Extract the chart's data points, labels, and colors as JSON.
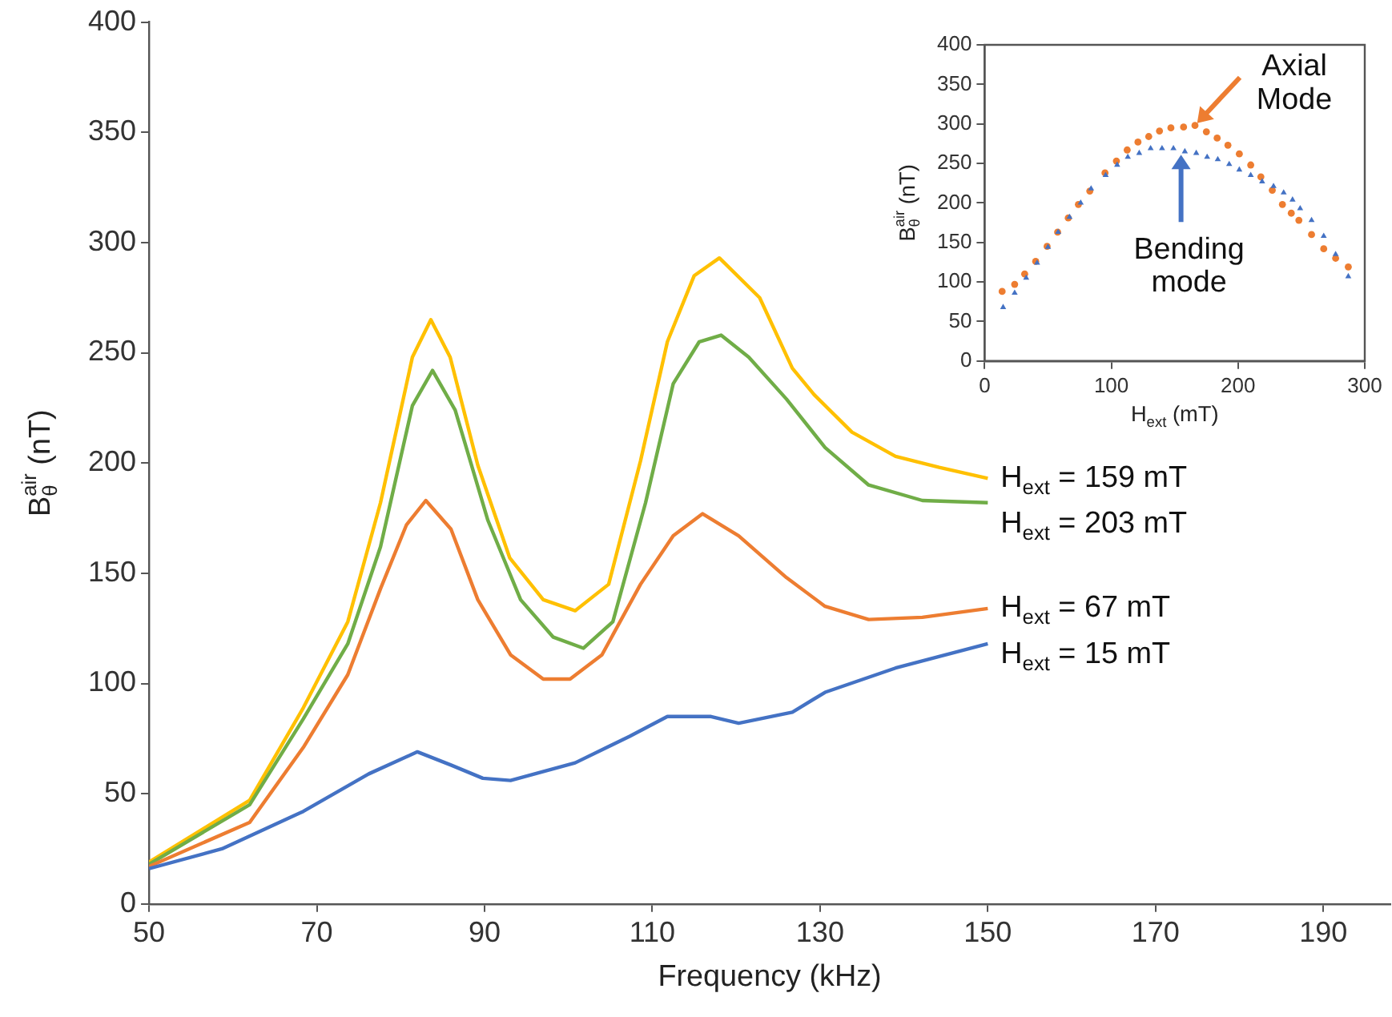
{
  "chart_data": [
    {
      "type": "line",
      "xlabel": "Frequency (kHz)",
      "ylabel": "B$_{θ}$$^{air}$ (nT)",
      "xlim": [
        50,
        198
      ],
      "xticks": [
        50,
        70,
        90,
        110,
        130,
        150,
        170,
        190
      ],
      "ylim": [
        0,
        400
      ],
      "yticks": [
        0,
        50,
        100,
        150,
        200,
        250,
        300,
        350,
        400
      ],
      "series": [
        {
          "name": "H$_{ext}$ = 159 mT",
          "color": "#ffc000",
          "x": [
            50,
            62,
            68.4,
            73.7,
            77.6,
            81.4,
            83.6,
            85.9,
            89.2,
            93,
            97,
            100.8,
            104.8,
            108.6,
            111.8,
            115,
            118,
            122.8,
            126.7,
            129.3,
            133.8,
            139,
            144.2,
            150
          ],
          "values": [
            19,
            47,
            89,
            128,
            182,
            248,
            265,
            248,
            199,
            157,
            138,
            133,
            145,
            201,
            255,
            285,
            293,
            275,
            243,
            231,
            214,
            203,
            198,
            193
          ]
        },
        {
          "name": "H$_{ext}$ = 203 mT",
          "color": "#70ad47",
          "x": [
            50,
            62,
            68.4,
            73.7,
            77.6,
            81.4,
            83.8,
            86.5,
            90.4,
            94.3,
            98.2,
            101.8,
            105.3,
            109.2,
            112.5,
            115.6,
            118.2,
            121.5,
            126,
            130.6,
            135.8,
            142.2,
            150
          ],
          "values": [
            18,
            45,
            84,
            118,
            162,
            226,
            242,
            224,
            174,
            138,
            121,
            116,
            128,
            182,
            236,
            255,
            258,
            248,
            229,
            207,
            190,
            183,
            182
          ]
        },
        {
          "name": "H$_{ext}$ = 67 mT",
          "color": "#ed7d31",
          "x": [
            50,
            62,
            68.4,
            73.7,
            77.6,
            80.7,
            83,
            86,
            89.2,
            93.1,
            97,
            100.2,
            104,
            108.6,
            112.5,
            116,
            120.3,
            126,
            130.6,
            135.8,
            142.2,
            150
          ],
          "values": [
            17,
            37,
            71,
            104,
            143,
            172,
            183,
            170,
            138,
            113,
            102,
            102,
            113,
            145,
            167,
            177,
            167,
            148,
            135,
            129,
            130,
            134
          ]
        },
        {
          "name": "H$_{ext}$ = 15 mT",
          "color": "#4472c4",
          "x": [
            50,
            58.7,
            68.4,
            76.2,
            82,
            86,
            89.8,
            93.1,
            100.8,
            107.3,
            111.8,
            117,
            120.3,
            126.7,
            130.6,
            139,
            150
          ],
          "values": [
            16,
            25,
            42,
            59,
            69,
            63,
            57,
            56,
            64,
            76,
            85,
            85,
            82,
            87,
            96,
            107,
            118
          ]
        }
      ]
    },
    {
      "type": "scatter",
      "xlabel": "H$_{ext}$ (mT)",
      "ylabel": "B$_{θ}$$^{air}$ (nT)",
      "xlim": [
        0,
        300
      ],
      "xticks": [
        0,
        100,
        200,
        300
      ],
      "ylim": [
        0,
        400
      ],
      "yticks": [
        0,
        50,
        100,
        150,
        200,
        250,
        300,
        350,
        400
      ],
      "annotations": [
        {
          "text": "Axial Mode",
          "x": 166,
          "y": 298
        },
        {
          "text": "Bending mode",
          "x": 155,
          "y": 265
        }
      ],
      "series": [
        {
          "color": "#ed7d31",
          "marker": "circle",
          "x": [
            13.8,
            23.7,
            31.6,
            40.3,
            49.3,
            57.6,
            66,
            74,
            83,
            95,
            104,
            112.5,
            121,
            129.5,
            138,
            147,
            157,
            166,
            175,
            183.5,
            192,
            201,
            210,
            218,
            227,
            235,
            242,
            248,
            258,
            267.6,
            277,
            287
          ],
          "values": [
            88,
            97,
            110,
            126,
            145,
            163,
            181,
            198,
            215,
            238,
            253,
            267,
            277,
            284,
            291,
            295,
            296,
            298,
            290,
            282,
            273,
            262,
            248,
            233,
            216,
            198,
            187,
            178,
            160,
            142,
            130,
            119
          ]
        },
        {
          "color": "#4472c4",
          "marker": "triangle",
          "x": [
            14.6,
            23.7,
            32.8,
            41.4,
            50,
            58,
            67,
            75.8,
            84,
            95.5,
            104.6,
            113,
            122,
            131,
            140,
            149,
            158,
            167,
            175.6,
            184,
            193,
            201,
            210,
            219,
            228,
            236,
            243,
            249,
            258,
            267.6,
            277,
            287
          ],
          "values": [
            68,
            86,
            105,
            124,
            144,
            163,
            182,
            200,
            218,
            235,
            248,
            258,
            263,
            269,
            269,
            269,
            265,
            263,
            258,
            255,
            249,
            242,
            235,
            227,
            221,
            213,
            204,
            193,
            178,
            158,
            135,
            107
          ]
        }
      ]
    }
  ]
}
